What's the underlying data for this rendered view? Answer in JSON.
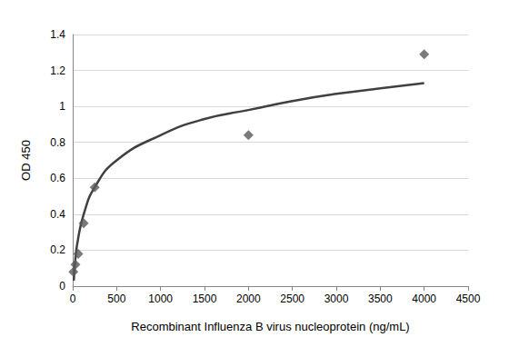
{
  "chart_data": {
    "type": "scatter",
    "xlabel": "Recombinant Influenza B virus nucleoprotein (ng/mL)",
    "ylabel": "OD 450",
    "xlim": [
      0,
      4500
    ],
    "xticks": [
      0,
      500,
      1000,
      1500,
      2000,
      2500,
      3000,
      3500,
      4000,
      4500
    ],
    "ylim": [
      0,
      1.4
    ],
    "yticks": [
      0,
      0.2,
      0.4,
      0.6,
      0.8,
      1,
      1.2,
      1.4
    ],
    "grid": true,
    "series": [
      {
        "type": "scatter",
        "marker": "diamond",
        "color": "#595959",
        "x": [
          7.8,
          31.25,
          62.5,
          125,
          250,
          2000,
          4000
        ],
        "values": [
          0.08,
          0.12,
          0.18,
          0.35,
          0.55,
          0.84,
          1.29
        ]
      },
      {
        "type": "line",
        "color": "#404040",
        "x": [
          12,
          30,
          60,
          125,
          250,
          500,
          1000,
          1500,
          2000,
          2500,
          3000,
          3500,
          4000
        ],
        "values": [
          0.03,
          0.15,
          0.26,
          0.4,
          0.55,
          0.7,
          0.84,
          0.93,
          0.98,
          1.03,
          1.07,
          1.1,
          1.13
        ]
      }
    ]
  }
}
